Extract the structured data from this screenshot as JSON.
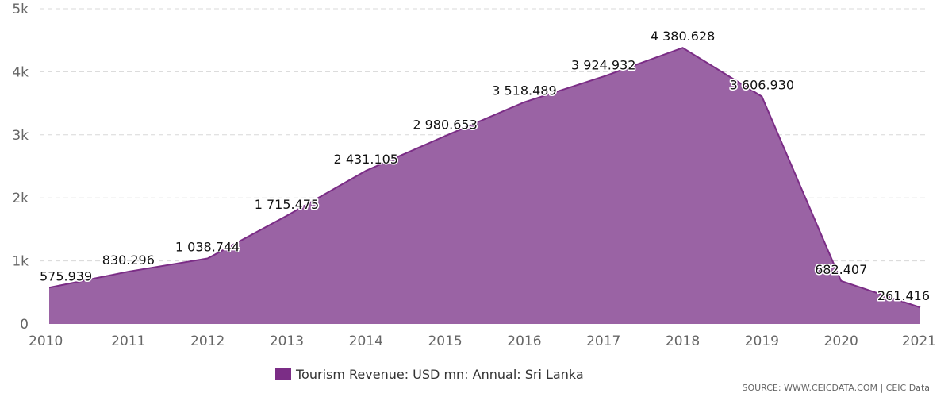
{
  "chart_data": {
    "type": "area",
    "x": [
      "2010",
      "2011",
      "2012",
      "2013",
      "2014",
      "2015",
      "2016",
      "2017",
      "2018",
      "2019",
      "2020",
      "2021"
    ],
    "series": [
      {
        "name": "Tourism Revenue: USD mn: Annual: Sri Lanka",
        "values": [
          575.939,
          830.296,
          1038.744,
          1715.475,
          2431.105,
          2980.653,
          3518.489,
          3924.932,
          4380.628,
          3606.93,
          682.407,
          261.416
        ],
        "data_labels": [
          "575.939",
          "830.296",
          "1 038.744",
          "1 715.475",
          "2 431.105",
          "2 980.653",
          "3 518.489",
          "3 924.932",
          "4 380.628",
          "3 606.930",
          "682.407",
          "261.416"
        ],
        "color": "#7b2d86"
      }
    ],
    "ylim": [
      0,
      5000
    ],
    "y_ticks": [
      0,
      1000,
      2000,
      3000,
      4000,
      5000
    ],
    "y_tick_labels": [
      "0",
      "1k",
      "2k",
      "3k",
      "4k",
      "5k"
    ],
    "x_tick_labels": [
      "2010",
      "2011",
      "2012",
      "2013",
      "2014",
      "2015",
      "2016",
      "2017",
      "2018",
      "2019",
      "2020",
      "2021"
    ],
    "grid": true,
    "legend_position": "bottom-center",
    "title": "",
    "xlabel": "",
    "ylabel": ""
  },
  "colors": {
    "series": "#7b2d86",
    "fill": "#9a63a4",
    "grid": "#d8d8d8"
  },
  "legend": {
    "label": "Tourism Revenue: USD mn: Annual: Sri Lanka"
  },
  "source": "SOURCE: WWW.CEICDATA.COM | CEIC Data"
}
